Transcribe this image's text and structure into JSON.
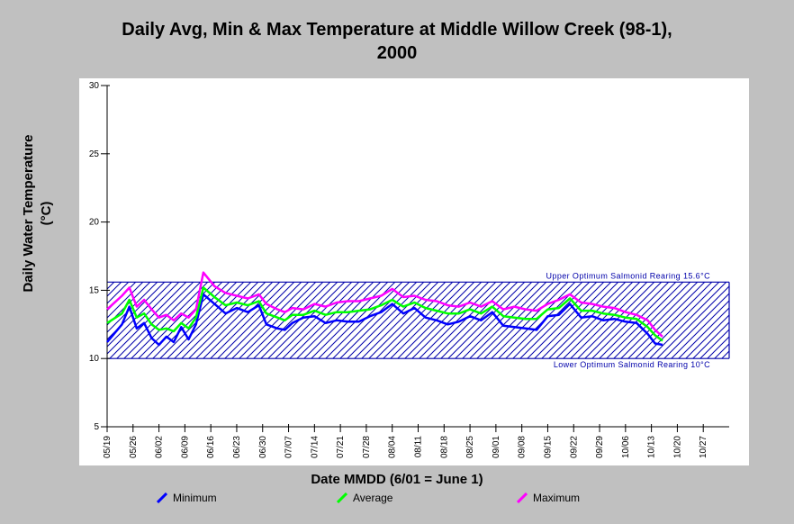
{
  "chart_data": {
    "type": "line",
    "title_lines": [
      "Daily Avg, Min & Max Temperature at Middle Willow Creek (98-1),",
      "2000"
    ],
    "xlabel": "Date MMDD (6/01 = June 1)",
    "ylabel_lines": [
      "Daily Water Temperature",
      "(°C)"
    ],
    "ylim": [
      5,
      30
    ],
    "yticks": [
      "5",
      "10",
      "15",
      "20",
      "25",
      "30"
    ],
    "x_start": "2000-05-19",
    "x_end": "2000-11-03",
    "xtick_labels": [
      "05/19",
      "05/26",
      "06/02",
      "06/09",
      "06/16",
      "06/23",
      "06/30",
      "07/07",
      "07/14",
      "07/21",
      "07/28",
      "08/04",
      "08/11",
      "08/18",
      "08/25",
      "09/01",
      "09/08",
      "09/15",
      "09/22",
      "09/29",
      "10/06",
      "10/13",
      "10/20",
      "10/27"
    ],
    "band": {
      "upper": 15.6,
      "lower": 10,
      "upper_label": "Upper Optimum Salmonid Rearing 15.6°C",
      "lower_label": "Lower Optimum Salmonid Rearing 10°C",
      "color": "#0000aa"
    },
    "series": [
      {
        "name": "Minimum",
        "color": "#0000ff",
        "points": [
          [
            "2000-05-19",
            11.2
          ],
          [
            "2000-05-23",
            12.5
          ],
          [
            "2000-05-25",
            13.8
          ],
          [
            "2000-05-27",
            12.2
          ],
          [
            "2000-05-29",
            12.6
          ],
          [
            "2000-05-31",
            11.5
          ],
          [
            "2000-06-02",
            11.0
          ],
          [
            "2000-06-04",
            11.6
          ],
          [
            "2000-06-06",
            11.2
          ],
          [
            "2000-06-08",
            12.3
          ],
          [
            "2000-06-10",
            11.4
          ],
          [
            "2000-06-12",
            12.5
          ],
          [
            "2000-06-14",
            14.7
          ],
          [
            "2000-06-17",
            14.0
          ],
          [
            "2000-06-20",
            13.3
          ],
          [
            "2000-06-23",
            13.7
          ],
          [
            "2000-06-26",
            13.4
          ],
          [
            "2000-06-29",
            13.9
          ],
          [
            "2000-07-01",
            12.5
          ],
          [
            "2000-07-04",
            12.2
          ],
          [
            "2000-07-06",
            12.1
          ],
          [
            "2000-07-08",
            12.6
          ],
          [
            "2000-07-11",
            13.0
          ],
          [
            "2000-07-14",
            13.1
          ],
          [
            "2000-07-17",
            12.6
          ],
          [
            "2000-07-20",
            12.8
          ],
          [
            "2000-07-23",
            12.7
          ],
          [
            "2000-07-26",
            12.7
          ],
          [
            "2000-07-29",
            13.1
          ],
          [
            "2000-08-01",
            13.4
          ],
          [
            "2000-08-04",
            14.0
          ],
          [
            "2000-08-07",
            13.3
          ],
          [
            "2000-08-10",
            13.7
          ],
          [
            "2000-08-13",
            13.0
          ],
          [
            "2000-08-16",
            12.8
          ],
          [
            "2000-08-19",
            12.5
          ],
          [
            "2000-08-22",
            12.7
          ],
          [
            "2000-08-25",
            13.1
          ],
          [
            "2000-08-28",
            12.8
          ],
          [
            "2000-08-31",
            13.4
          ],
          [
            "2000-09-03",
            12.4
          ],
          [
            "2000-09-06",
            12.3
          ],
          [
            "2000-09-09",
            12.2
          ],
          [
            "2000-09-12",
            12.1
          ],
          [
            "2000-09-15",
            13.1
          ],
          [
            "2000-09-18",
            13.2
          ],
          [
            "2000-09-21",
            14.0
          ],
          [
            "2000-09-24",
            13.0
          ],
          [
            "2000-09-27",
            13.1
          ],
          [
            "2000-09-30",
            12.8
          ],
          [
            "2000-10-03",
            12.9
          ],
          [
            "2000-10-06",
            12.7
          ],
          [
            "2000-10-09",
            12.6
          ],
          [
            "2000-10-12",
            11.8
          ],
          [
            "2000-10-14",
            11.1
          ],
          [
            "2000-10-16",
            11.0
          ]
        ]
      },
      {
        "name": "Average",
        "color": "#00ff00",
        "points": [
          [
            "2000-05-19",
            12.6
          ],
          [
            "2000-05-23",
            13.3
          ],
          [
            "2000-05-25",
            14.3
          ],
          [
            "2000-05-27",
            13.0
          ],
          [
            "2000-05-29",
            13.3
          ],
          [
            "2000-05-31",
            12.5
          ],
          [
            "2000-06-02",
            12.1
          ],
          [
            "2000-06-04",
            12.2
          ],
          [
            "2000-06-06",
            12.0
          ],
          [
            "2000-06-08",
            12.6
          ],
          [
            "2000-06-10",
            12.2
          ],
          [
            "2000-06-12",
            13.0
          ],
          [
            "2000-06-14",
            15.2
          ],
          [
            "2000-06-17",
            14.5
          ],
          [
            "2000-06-20",
            13.9
          ],
          [
            "2000-06-23",
            14.1
          ],
          [
            "2000-06-26",
            13.9
          ],
          [
            "2000-06-29",
            14.2
          ],
          [
            "2000-07-01",
            13.3
          ],
          [
            "2000-07-04",
            13.0
          ],
          [
            "2000-07-06",
            12.8
          ],
          [
            "2000-07-08",
            13.2
          ],
          [
            "2000-07-11",
            13.2
          ],
          [
            "2000-07-14",
            13.5
          ],
          [
            "2000-07-17",
            13.2
          ],
          [
            "2000-07-20",
            13.4
          ],
          [
            "2000-07-23",
            13.4
          ],
          [
            "2000-07-26",
            13.5
          ],
          [
            "2000-07-29",
            13.6
          ],
          [
            "2000-08-01",
            13.9
          ],
          [
            "2000-08-04",
            14.3
          ],
          [
            "2000-08-07",
            13.8
          ],
          [
            "2000-08-10",
            14.1
          ],
          [
            "2000-08-13",
            13.7
          ],
          [
            "2000-08-16",
            13.5
          ],
          [
            "2000-08-19",
            13.3
          ],
          [
            "2000-08-22",
            13.3
          ],
          [
            "2000-08-25",
            13.6
          ],
          [
            "2000-08-28",
            13.3
          ],
          [
            "2000-08-31",
            13.8
          ],
          [
            "2000-09-03",
            13.1
          ],
          [
            "2000-09-06",
            13.0
          ],
          [
            "2000-09-09",
            12.9
          ],
          [
            "2000-09-12",
            12.9
          ],
          [
            "2000-09-15",
            13.6
          ],
          [
            "2000-09-18",
            13.7
          ],
          [
            "2000-09-21",
            14.4
          ],
          [
            "2000-09-24",
            13.5
          ],
          [
            "2000-09-27",
            13.5
          ],
          [
            "2000-09-30",
            13.3
          ],
          [
            "2000-10-03",
            13.2
          ],
          [
            "2000-10-06",
            13.0
          ],
          [
            "2000-10-09",
            12.9
          ],
          [
            "2000-10-12",
            12.3
          ],
          [
            "2000-10-14",
            11.7
          ],
          [
            "2000-10-16",
            11.3
          ]
        ]
      },
      {
        "name": "Maximum",
        "color": "#ff00ff",
        "points": [
          [
            "2000-05-19",
            13.6
          ],
          [
            "2000-05-23",
            14.6
          ],
          [
            "2000-05-25",
            15.2
          ],
          [
            "2000-05-27",
            13.8
          ],
          [
            "2000-05-29",
            14.3
          ],
          [
            "2000-05-31",
            13.6
          ],
          [
            "2000-06-02",
            13.0
          ],
          [
            "2000-06-04",
            13.2
          ],
          [
            "2000-06-06",
            12.8
          ],
          [
            "2000-06-08",
            13.3
          ],
          [
            "2000-06-10",
            13.0
          ],
          [
            "2000-06-12",
            13.6
          ],
          [
            "2000-06-14",
            16.3
          ],
          [
            "2000-06-17",
            15.3
          ],
          [
            "2000-06-20",
            14.8
          ],
          [
            "2000-06-23",
            14.6
          ],
          [
            "2000-06-26",
            14.4
          ],
          [
            "2000-06-29",
            14.7
          ],
          [
            "2000-07-01",
            14.0
          ],
          [
            "2000-07-04",
            13.6
          ],
          [
            "2000-07-06",
            13.4
          ],
          [
            "2000-07-08",
            13.7
          ],
          [
            "2000-07-11",
            13.6
          ],
          [
            "2000-07-14",
            14.0
          ],
          [
            "2000-07-17",
            13.8
          ],
          [
            "2000-07-20",
            14.1
          ],
          [
            "2000-07-23",
            14.2
          ],
          [
            "2000-07-26",
            14.2
          ],
          [
            "2000-07-29",
            14.4
          ],
          [
            "2000-08-01",
            14.6
          ],
          [
            "2000-08-04",
            15.1
          ],
          [
            "2000-08-07",
            14.5
          ],
          [
            "2000-08-10",
            14.6
          ],
          [
            "2000-08-13",
            14.3
          ],
          [
            "2000-08-16",
            14.2
          ],
          [
            "2000-08-19",
            13.9
          ],
          [
            "2000-08-22",
            13.8
          ],
          [
            "2000-08-25",
            14.1
          ],
          [
            "2000-08-28",
            13.8
          ],
          [
            "2000-08-31",
            14.2
          ],
          [
            "2000-09-03",
            13.6
          ],
          [
            "2000-09-06",
            13.8
          ],
          [
            "2000-09-09",
            13.6
          ],
          [
            "2000-09-12",
            13.5
          ],
          [
            "2000-09-15",
            14.0
          ],
          [
            "2000-09-18",
            14.3
          ],
          [
            "2000-09-21",
            14.7
          ],
          [
            "2000-09-24",
            14.1
          ],
          [
            "2000-09-27",
            14.0
          ],
          [
            "2000-09-30",
            13.8
          ],
          [
            "2000-10-03",
            13.7
          ],
          [
            "2000-10-06",
            13.4
          ],
          [
            "2000-10-09",
            13.2
          ],
          [
            "2000-10-12",
            12.8
          ],
          [
            "2000-10-14",
            12.1
          ],
          [
            "2000-10-16",
            11.6
          ]
        ]
      }
    ]
  }
}
